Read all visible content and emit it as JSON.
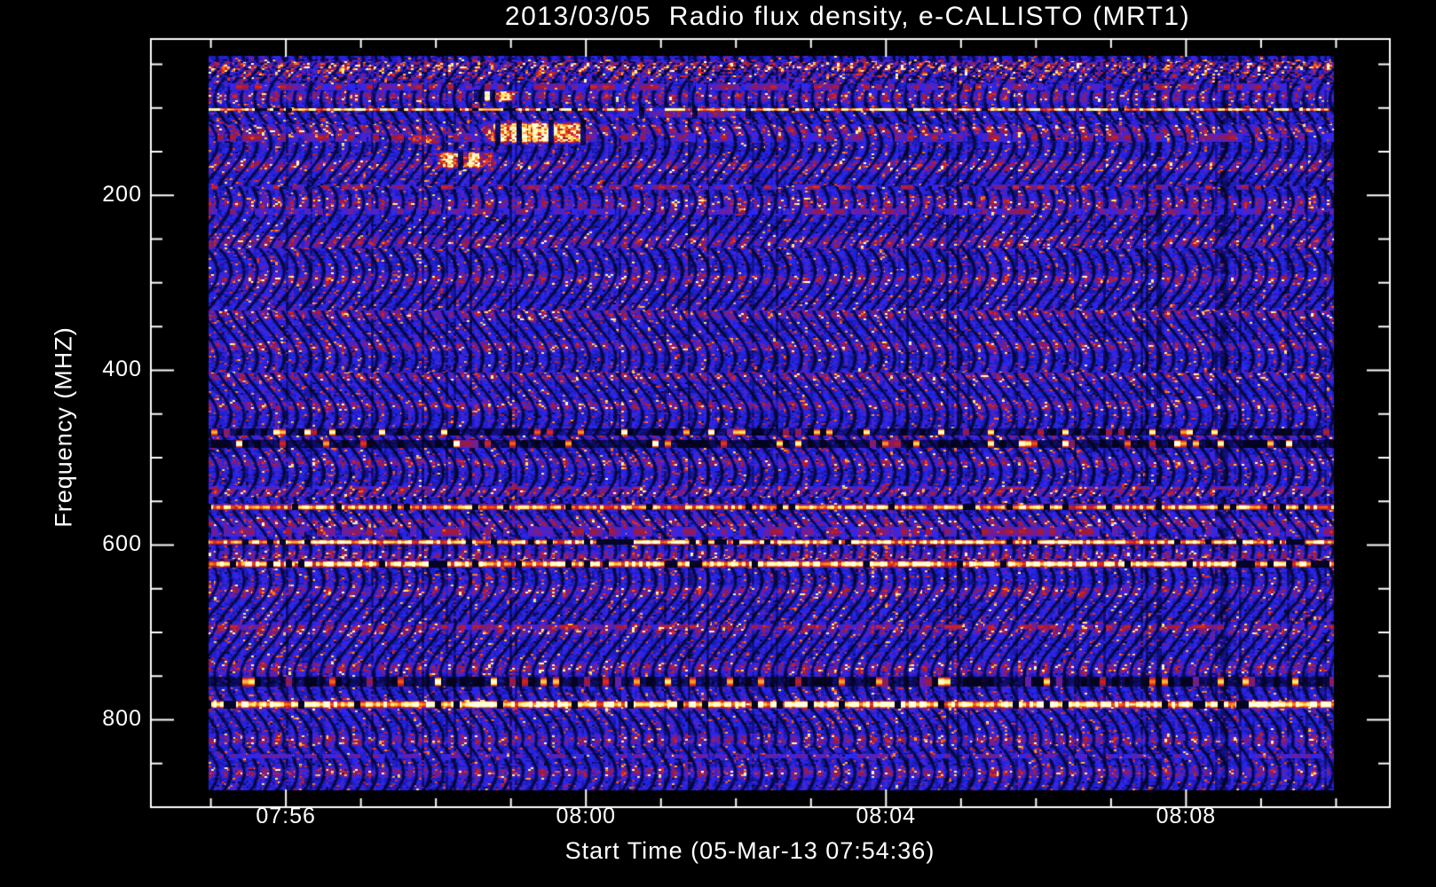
{
  "figure": {
    "background_color": "#000000",
    "frame_color": "#ffffff",
    "text_color": "#ffffff"
  },
  "chart_data": {
    "type": "heatmap",
    "title": "2013/03/05  Radio flux density, e-CALLISTO (MRT1)",
    "xlabel": "Start Time (05-Mar-13 07:54:36)",
    "ylabel": "Frequency (MHZ)",
    "date": "2013/03/05",
    "instrument": "e-CALLISTO (MRT1)",
    "start_time": "07:54:36",
    "x_axis": {
      "t_min": "07:54:12",
      "t_max": "08:10:43",
      "major_ticks": [
        "07:56",
        "08:00",
        "08:04",
        "08:08"
      ],
      "minor_tick_interval_s": 60
    },
    "y_axis": {
      "unit": "MHZ",
      "f_min": 21,
      "f_max": 900,
      "inverted": true,
      "major_ticks": [
        200,
        400,
        600,
        800
      ],
      "minor_tick_interval_mhz": 50
    },
    "image_extent": {
      "t_start": "07:54:56",
      "t_end": "08:10:00",
      "f_top_mhz": 40,
      "f_bottom_mhz": 881
    },
    "palette_stops": [
      [
        0.0,
        [
          2,
          2,
          20
        ]
      ],
      [
        0.22,
        [
          20,
          18,
          140
        ]
      ],
      [
        0.45,
        [
          40,
          40,
          248
        ]
      ],
      [
        0.56,
        [
          105,
          30,
          165
        ]
      ],
      [
        0.66,
        [
          160,
          25,
          55
        ]
      ],
      [
        0.76,
        [
          225,
          40,
          25
        ]
      ],
      [
        0.86,
        [
          255,
          135,
          25
        ]
      ],
      [
        0.96,
        [
          255,
          240,
          110
        ]
      ],
      [
        1.12,
        [
          255,
          255,
          235
        ]
      ]
    ],
    "background_texture": {
      "base_color": "#2222dd",
      "speckle_color": "#aa2233",
      "stripe_color": "#000030"
    },
    "rfi_lines": [
      {
        "freq_mhz": 58,
        "width_mhz": 30,
        "style": "speckle",
        "strength": 0.5
      },
      {
        "freq_mhz": 75,
        "width_mhz": 8,
        "style": "red",
        "strength": 0.55
      },
      {
        "freq_mhz": 101,
        "width_mhz": 4,
        "style": "bright",
        "strength": 0.8
      },
      {
        "freq_mhz": 133,
        "width_mhz": 10,
        "style": "red",
        "strength": 0.5
      },
      {
        "freq_mhz": 190,
        "width_mhz": 6,
        "style": "red",
        "strength": 0.6
      },
      {
        "freq_mhz": 218,
        "width_mhz": 8,
        "style": "red",
        "strength": 0.4
      },
      {
        "freq_mhz": 471,
        "width_mhz": 8,
        "style": "dark",
        "strength": 0.55
      },
      {
        "freq_mhz": 484,
        "width_mhz": 9,
        "style": "dark",
        "strength": 0.6
      },
      {
        "freq_mhz": 535,
        "width_mhz": 4,
        "style": "red",
        "strength": 0.5
      },
      {
        "freq_mhz": 557,
        "width_mhz": 7,
        "style": "bright",
        "strength": 0.65
      },
      {
        "freq_mhz": 585,
        "width_mhz": 12,
        "style": "red",
        "strength": 0.45
      },
      {
        "freq_mhz": 597,
        "width_mhz": 6,
        "style": "bright",
        "strength": 0.8
      },
      {
        "freq_mhz": 622,
        "width_mhz": 8,
        "style": "bright",
        "strength": 0.85
      },
      {
        "freq_mhz": 694,
        "width_mhz": 6,
        "style": "red",
        "strength": 0.6
      },
      {
        "freq_mhz": 757,
        "width_mhz": 11,
        "style": "dark",
        "strength": 0.5
      },
      {
        "freq_mhz": 783,
        "width_mhz": 9,
        "style": "bright",
        "strength": 0.95
      },
      {
        "freq_mhz": 842,
        "width_mhz": 5,
        "style": "red",
        "strength": 0.3
      }
    ],
    "bursts": [
      {
        "name": "burst-hook",
        "t0": "07:58:25",
        "t1": "07:59:05",
        "f0": 78,
        "f1": 93,
        "peak": 1.05
      },
      {
        "name": "burst-core",
        "t0": "07:58:28",
        "t1": "08:00:10",
        "f0": 112,
        "f1": 143,
        "peak": 1.08
      },
      {
        "name": "burst-low",
        "t0": "07:57:55",
        "t1": "07:58:50",
        "f0": 147,
        "f1": 171,
        "peak": 1.05
      },
      {
        "name": "burst-left",
        "t0": "07:57:35",
        "t1": "07:58:05",
        "f0": 128,
        "f1": 142,
        "peak": 0.8
      },
      {
        "name": "burst-drift",
        "t0": "08:00:05",
        "t1": "08:02:20",
        "f0": 97,
        "f1": 112,
        "peak": 0.6
      },
      {
        "name": "burst-dot",
        "t0": "08:03:50",
        "t1": "08:03:58",
        "f0": 110,
        "f1": 117,
        "peak": 0.95
      }
    ]
  }
}
